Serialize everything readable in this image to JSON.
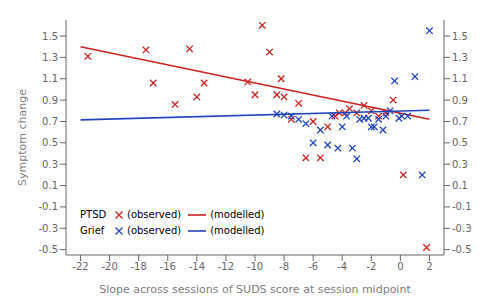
{
  "chart_data": {
    "type": "scatter",
    "xlabel": "Slope across sessions of SUDS score at session midpoint",
    "ylabel": "Symptom change",
    "xlim": [
      -23,
      3
    ],
    "ylim": [
      -0.55,
      1.65
    ],
    "y2lim": [
      -0.55,
      1.65
    ],
    "xticks": [
      -22,
      -20,
      -18,
      -16,
      -14,
      -12,
      -10,
      -8,
      -6,
      -4,
      -2,
      0,
      2
    ],
    "yticks": [
      -0.5,
      -0.3,
      -0.1,
      0.1,
      0.3,
      0.5,
      0.7,
      0.9,
      1.1,
      1.3,
      1.5
    ],
    "y2ticks": [
      -0.5,
      -0.3,
      -0.1,
      0.1,
      0.3,
      0.5,
      0.7,
      0.9,
      1.1,
      1.3,
      1.5
    ],
    "grid": false,
    "legend": "lower left",
    "series": [
      {
        "name": "PTSD",
        "label": "(observed)",
        "type": "scatter",
        "marker": "x",
        "color": "#cc2222",
        "x": [
          -21.5,
          -17.5,
          -17.0,
          -15.5,
          -14.5,
          -14.0,
          -13.5,
          -10.5,
          -10.0,
          -9.5,
          -9.0,
          -8.5,
          -8.2,
          -8.0,
          -7.5,
          -7.0,
          -6.5,
          -6.0,
          -5.5,
          -5.0,
          -4.5,
          -4.2,
          -3.8,
          -3.5,
          -3.0,
          -2.5,
          -2.0,
          -1.5,
          -1.0,
          -0.5,
          0.2,
          1.8
        ],
        "values": [
          1.31,
          1.37,
          1.06,
          0.86,
          1.38,
          0.93,
          1.06,
          1.07,
          0.95,
          1.6,
          1.35,
          0.95,
          1.1,
          0.93,
          0.72,
          0.87,
          0.36,
          0.7,
          0.36,
          0.65,
          0.75,
          0.78,
          0.78,
          0.82,
          0.78,
          0.85,
          0.8,
          0.75,
          0.78,
          0.9,
          0.2,
          -0.48
        ]
      },
      {
        "name": "PTSD",
        "label": "(modelled)",
        "type": "line",
        "line_style": "solid",
        "color": "#cc2222",
        "x": [
          -22,
          2
        ],
        "values": [
          1.4,
          0.72
        ]
      },
      {
        "name": "Grief",
        "label": "(observed)",
        "type": "scatter",
        "marker": "x",
        "color": "#2244bb",
        "x": [
          -8.5,
          -8.0,
          -7.5,
          -7.0,
          -6.5,
          -6.0,
          -5.5,
          -5.0,
          -4.7,
          -4.3,
          -4.0,
          -3.7,
          -3.3,
          -3.0,
          -2.8,
          -2.5,
          -2.2,
          -2.0,
          -1.8,
          -1.5,
          -1.2,
          -1.0,
          -0.7,
          -0.4,
          -0.1,
          0.1,
          0.5,
          1.0,
          1.5,
          2.0
        ],
        "values": [
          0.77,
          0.76,
          0.75,
          0.72,
          0.68,
          0.5,
          0.62,
          0.48,
          0.75,
          0.45,
          0.65,
          0.75,
          0.45,
          0.35,
          0.72,
          0.73,
          0.73,
          0.65,
          0.65,
          0.72,
          0.62,
          0.75,
          0.8,
          1.08,
          0.73,
          0.75,
          0.75,
          1.12,
          0.2,
          1.55
        ]
      },
      {
        "name": "Grief",
        "label": "(modelled)",
        "type": "line",
        "line_style": "solid",
        "color": "#2244bb",
        "x": [
          -22,
          2
        ],
        "values": [
          0.715,
          0.805
        ]
      }
    ]
  }
}
